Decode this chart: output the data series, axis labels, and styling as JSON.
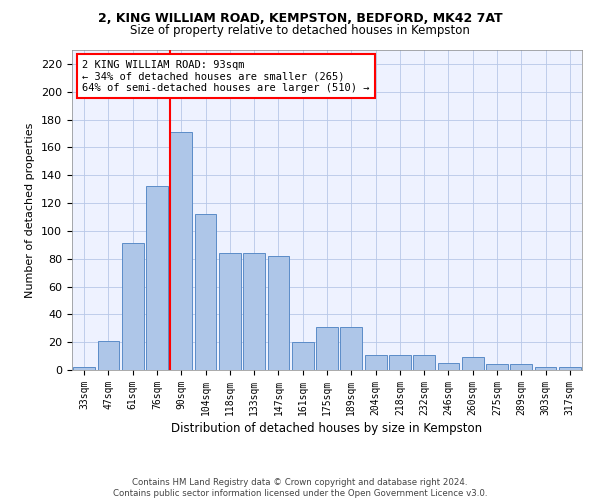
{
  "title1": "2, KING WILLIAM ROAD, KEMPSTON, BEDFORD, MK42 7AT",
  "title2": "Size of property relative to detached houses in Kempston",
  "xlabel": "Distribution of detached houses by size in Kempston",
  "ylabel": "Number of detached properties",
  "categories": [
    "33sqm",
    "47sqm",
    "61sqm",
    "76sqm",
    "90sqm",
    "104sqm",
    "118sqm",
    "133sqm",
    "147sqm",
    "161sqm",
    "175sqm",
    "189sqm",
    "204sqm",
    "218sqm",
    "232sqm",
    "246sqm",
    "260sqm",
    "275sqm",
    "289sqm",
    "303sqm",
    "317sqm"
  ],
  "values": [
    2,
    21,
    91,
    132,
    171,
    112,
    84,
    84,
    82,
    20,
    31,
    31,
    11,
    11,
    11,
    5,
    9,
    4,
    4,
    2,
    2
  ],
  "bar_color": "#aec6e8",
  "bar_edge_color": "#5b8cc8",
  "annotation_text": "2 KING WILLIAM ROAD: 93sqm\n← 34% of detached houses are smaller (265)\n64% of semi-detached houses are larger (510) →",
  "annotation_box_color": "white",
  "annotation_box_edge": "red",
  "vline_color": "red",
  "footer1": "Contains HM Land Registry data © Crown copyright and database right 2024.",
  "footer2": "Contains public sector information licensed under the Open Government Licence v3.0.",
  "background_color": "#eef2ff",
  "ylim": [
    0,
    230
  ],
  "yticks": [
    0,
    20,
    40,
    60,
    80,
    100,
    120,
    140,
    160,
    180,
    200,
    220
  ],
  "vline_index": 4
}
